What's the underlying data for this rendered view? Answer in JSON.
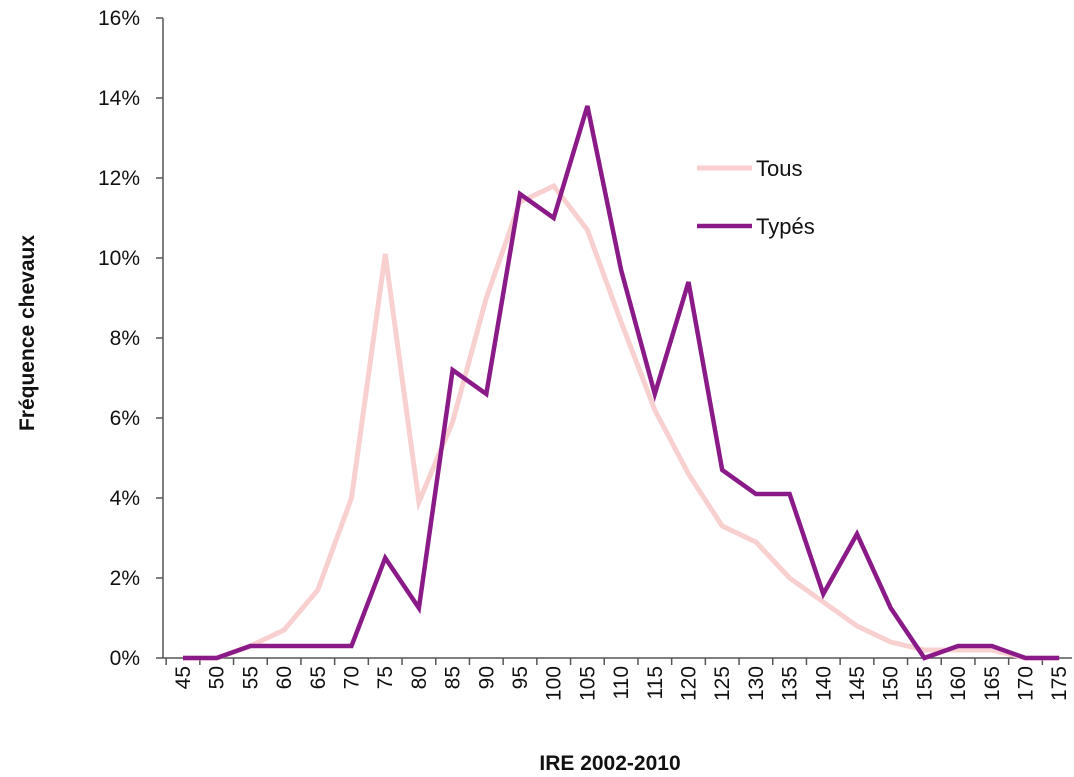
{
  "chart_data": {
    "type": "line",
    "title": "",
    "xlabel": "IRE 2002-2010",
    "ylabel": "Fréquence chevaux",
    "x": [
      45,
      50,
      55,
      60,
      65,
      70,
      75,
      80,
      85,
      90,
      95,
      100,
      105,
      110,
      115,
      120,
      125,
      130,
      135,
      140,
      145,
      150,
      155,
      160,
      165,
      170,
      175
    ],
    "x_tick_labels": [
      "45",
      "50",
      "55",
      "60",
      "65",
      "70",
      "75",
      "80",
      "85",
      "90",
      "95",
      "100",
      "105",
      "110",
      "115",
      "120",
      "125",
      "130",
      "135",
      "140",
      "145",
      "150",
      "155",
      "160",
      "165",
      "170",
      "175"
    ],
    "ylim": [
      0,
      16
    ],
    "y_ticks": [
      0,
      2,
      4,
      6,
      8,
      10,
      12,
      14,
      16
    ],
    "y_tick_labels": [
      "0%",
      "2%",
      "4%",
      "6%",
      "8%",
      "10%",
      "12%",
      "14%",
      "16%"
    ],
    "y_unit": "%",
    "grid": false,
    "legend_position": "upper-right inside plot",
    "series": [
      {
        "name": "Tous",
        "color": "#f9d0d0",
        "values": [
          0,
          0,
          0.3,
          0.7,
          1.7,
          4.0,
          10.1,
          3.9,
          5.9,
          9.0,
          11.4,
          11.8,
          10.7,
          8.4,
          6.2,
          4.6,
          3.3,
          2.9,
          2.0,
          1.4,
          0.8,
          0.4,
          0.2,
          0.2,
          0.2,
          0,
          0
        ]
      },
      {
        "name": "Typés",
        "color": "#8b1a89",
        "values": [
          0,
          0,
          0.3,
          0.3,
          0.3,
          0.3,
          2.5,
          1.25,
          7.2,
          6.6,
          11.6,
          11.0,
          13.8,
          9.7,
          6.6,
          9.4,
          4.7,
          4.1,
          4.1,
          1.6,
          3.1,
          1.25,
          0,
          0.3,
          0.3,
          0,
          0
        ]
      }
    ]
  }
}
